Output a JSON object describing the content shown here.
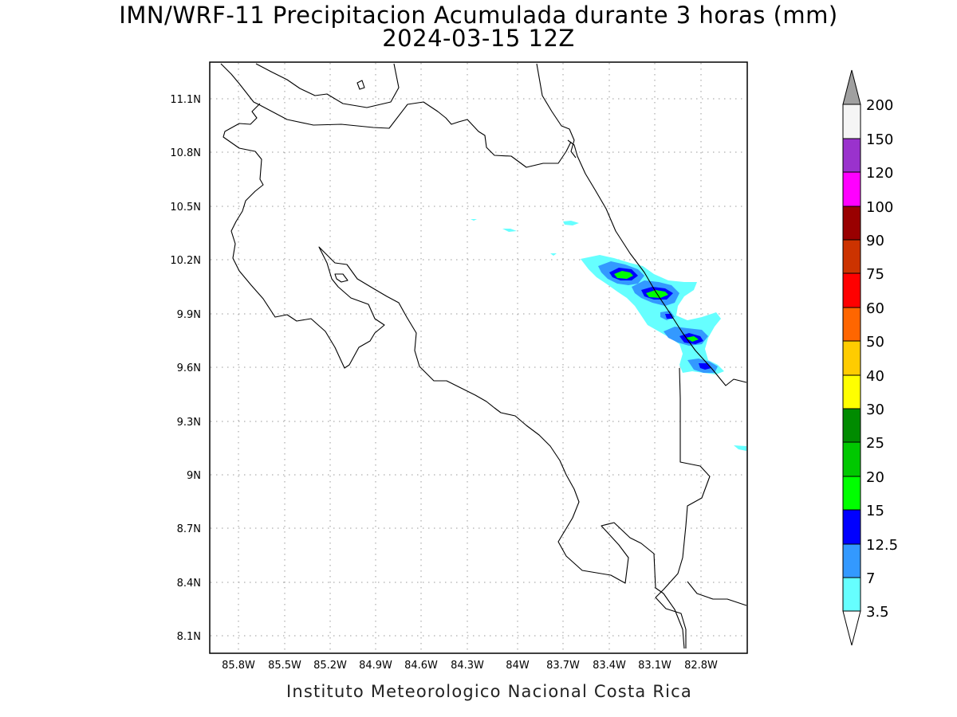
{
  "title": {
    "line1": "IMN/WRF-11 Precipitacion Acumulada durante 3 horas (mm)",
    "line2": "2024-03-15 12Z"
  },
  "footer": "Instituto Meteorologico Nacional Costa Rica",
  "map": {
    "lon_range": [
      -86.02,
      -82.48
    ],
    "lat_range": [
      8.0,
      11.34
    ],
    "lon_ticks": [
      "85.8W",
      "85.5W",
      "85.2W",
      "84.9W",
      "84.6W",
      "84.3W",
      "84W",
      "83.7W",
      "83.4W",
      "83.1W",
      "82.8W"
    ],
    "lat_ticks": [
      "11.1N",
      "10.8N",
      "10.5N",
      "10.2N",
      "9.9N",
      "9.6N",
      "9.3N",
      "9N",
      "8.7N",
      "8.4N",
      "8.1N"
    ],
    "grid": "dotted"
  },
  "colorbar": {
    "labels": [
      "200",
      "150",
      "120",
      "100",
      "90",
      "75",
      "60",
      "50",
      "40",
      "30",
      "25",
      "20",
      "15",
      "12.5",
      "7",
      "3.5"
    ],
    "colors": {
      "over": "#a0a0a0",
      "c150_200": "#f5f5f5",
      "c120_150": "#9a32cd",
      "c100_120": "#ff00ff",
      "c90_100": "#990000",
      "c75_90": "#cc3300",
      "c60_75": "#ff0000",
      "c50_60": "#ff6600",
      "c40_50": "#ffcc00",
      "c30_40": "#ffff00",
      "c25_30": "#008b00",
      "c20_25": "#00c800",
      "c15_20": "#00ff00",
      "c12_15": "#0000ff",
      "c7_12": "#3399ff",
      "c3_7": "#66ffff",
      "under": "#ffffff"
    }
  }
}
